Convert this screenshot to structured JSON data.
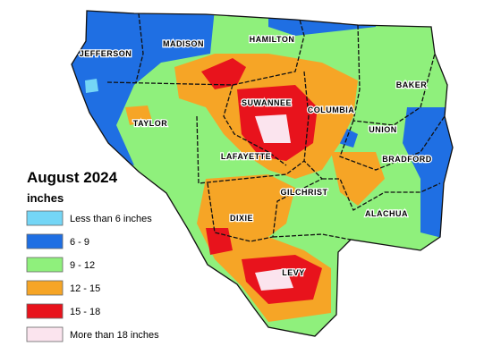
{
  "legend": {
    "title": "August 2024",
    "unit": "inches",
    "items": [
      {
        "label": "Less than 6 inches",
        "color": "#74d6f6"
      },
      {
        "label": "6 - 9",
        "color": "#1f6fe3"
      },
      {
        "label": "9 - 12",
        "color": "#8ff07c"
      },
      {
        "label": "12 - 15",
        "color": "#f6a526"
      },
      {
        "label": "15 - 18",
        "color": "#e8131c"
      },
      {
        "label": "More than 18 inches",
        "color": "#fbe4ee"
      }
    ]
  },
  "counties": [
    {
      "label": "JEFFERSON"
    },
    {
      "label": "MADISON"
    },
    {
      "label": "HAMILTON"
    },
    {
      "label": "BAKER"
    },
    {
      "label": "SUWANNEE"
    },
    {
      "label": "COLUMBIA"
    },
    {
      "label": "TAYLOR"
    },
    {
      "label": "UNION"
    },
    {
      "label": "LAFAYETTE"
    },
    {
      "label": "BRADFORD"
    },
    {
      "label": "GILCHRIST"
    },
    {
      "label": "ALACHUA"
    },
    {
      "label": "DIXIE"
    },
    {
      "label": "LEVY"
    }
  ]
}
